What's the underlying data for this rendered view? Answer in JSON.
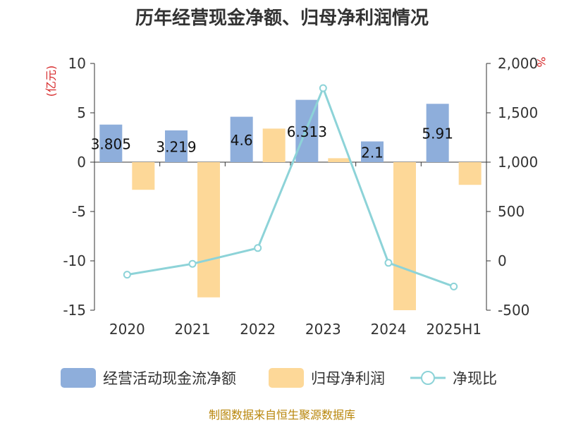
{
  "chart_data": {
    "type": "bar+line",
    "title": "历年经营现金净额、归母净利润情况",
    "categories": [
      "2020",
      "2021",
      "2022",
      "2023",
      "2024",
      "2025H1"
    ],
    "left_axis": {
      "unit": "(亿元)",
      "ylim": [
        -15,
        10
      ],
      "ticks": [
        "10",
        "5",
        "0",
        "-5",
        "-10",
        "-15"
      ],
      "tick_values": [
        10,
        5,
        0,
        -5,
        -10,
        -15
      ]
    },
    "right_axis": {
      "unit": "%",
      "ylim": [
        -500,
        2000
      ],
      "ticks": [
        "2,000",
        "1,500",
        "1,000",
        "500",
        "0",
        "-500"
      ],
      "tick_values": [
        2000,
        1500,
        1000,
        500,
        0,
        -500
      ]
    },
    "series": [
      {
        "name": "经营活动现金流净额",
        "kind": "bar",
        "axis": "left",
        "color": "#8eaedb",
        "values": [
          3.805,
          3.219,
          4.6,
          6.313,
          2.1,
          5.91
        ],
        "labels": [
          "3.805",
          "3.219",
          "4.6",
          "6.313",
          "2.1",
          "5.91"
        ]
      },
      {
        "name": "归母净利润",
        "kind": "bar",
        "axis": "left",
        "color": "#fdd898",
        "values": [
          -2.8,
          -13.7,
          3.4,
          0.4,
          -15.0,
          -2.3
        ]
      },
      {
        "name": "净现比",
        "kind": "line",
        "axis": "right",
        "color": "#8dd3d8",
        "values": [
          -140,
          -30,
          130,
          1750,
          -20,
          -260
        ]
      }
    ],
    "grid": false,
    "legend_position": "bottom"
  },
  "source": "制图数据来自恒生聚源数据库"
}
